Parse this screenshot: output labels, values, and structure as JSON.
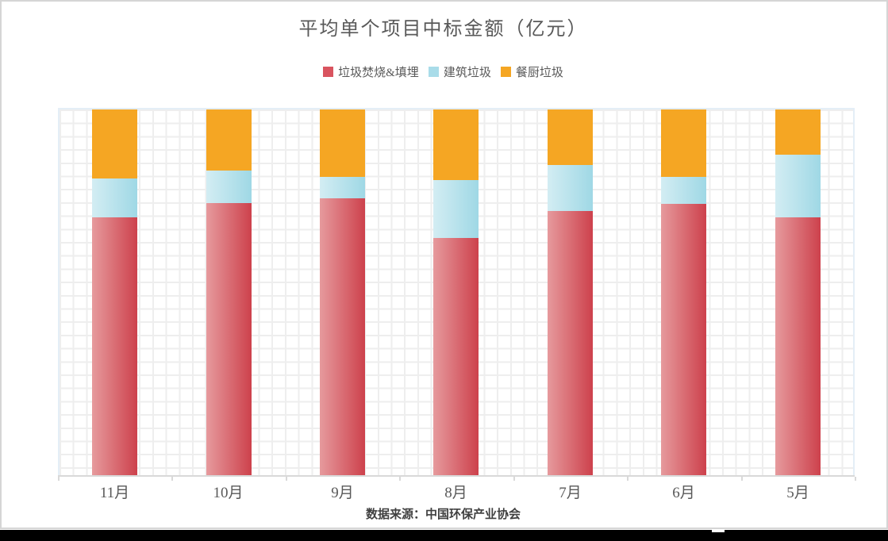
{
  "chart_data": {
    "type": "bar",
    "variant": "stacked-100-percent",
    "title": "平均单个项目中标金额（亿元）",
    "source_note": "数据来源：中国环保产业协会",
    "unit": "亿元",
    "categories": [
      "11月",
      "10月",
      "9月",
      "8月",
      "7月",
      "6月",
      "5月"
    ],
    "series": [
      {
        "name": "垃圾焚烧&填埋",
        "legend_color": "#d9545f",
        "gradient_left": "#e69a9d",
        "gradient_right": "#cd414c",
        "values": [
          70.5,
          74.4,
          75.8,
          64.9,
          72.3,
          74.2,
          70.4
        ]
      },
      {
        "name": "建筑垃圾",
        "legend_color": "#a9dce9",
        "gradient_left": "#d3edf3",
        "gradient_right": "#9fd8e5",
        "values": [
          10.6,
          8.9,
          5.8,
          15.8,
          12.6,
          7.4,
          17.3
        ]
      },
      {
        "name": "餐厨垃圾",
        "legend_color": "#f5a623",
        "gradient_left": "#f5a623",
        "gradient_right": "#f5a623",
        "values": [
          18.9,
          16.7,
          18.4,
          19.3,
          15.1,
          18.4,
          12.3
        ]
      }
    ],
    "stack_order_bottom_to_top": [
      "垃圾焚烧&填埋",
      "建筑垃圾",
      "餐厨垃圾"
    ],
    "ylim": [
      0,
      100
    ],
    "y_axis_tick_labels_visible": false,
    "grid": "fine square grid",
    "legend_position": "top-center"
  },
  "colors": {
    "title_text": "#595959",
    "axis_label_text": "#595959",
    "source_text": "#404040",
    "axis_line": "#d9d9d9",
    "grid_line": "#eeeeee",
    "plot_border": "#e4eef7",
    "frame_border": "#d5d5d5",
    "bottom_bar": "#000000"
  }
}
